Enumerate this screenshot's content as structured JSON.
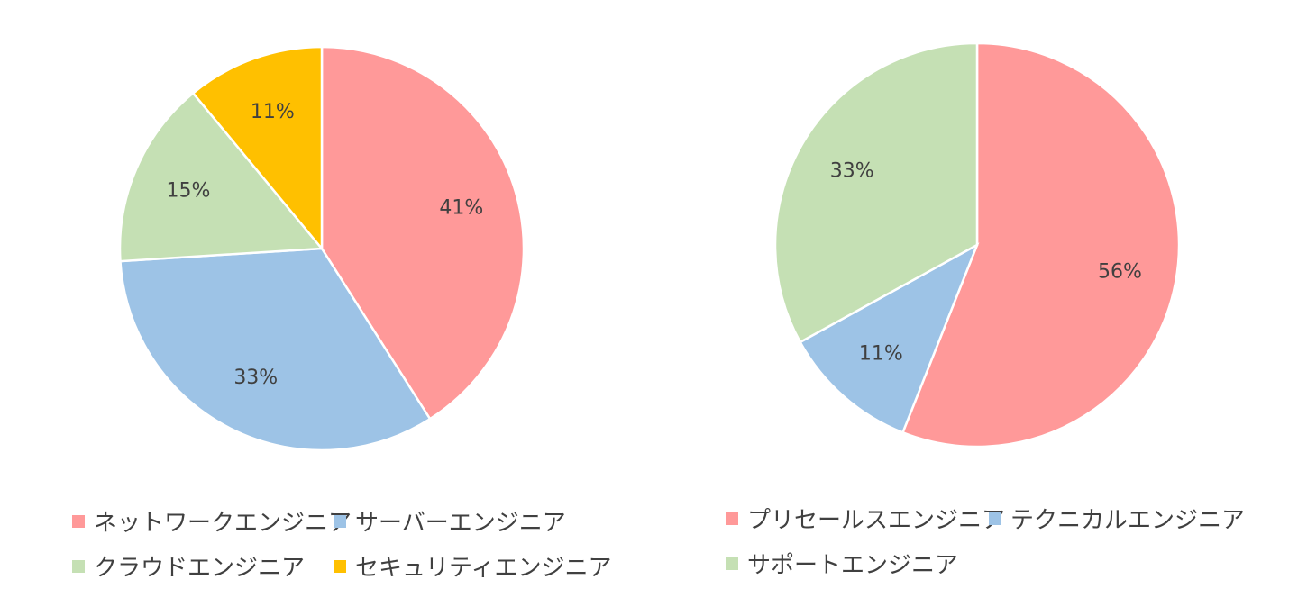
{
  "chart_data": [
    {
      "type": "pie",
      "title": "",
      "colors": [
        "#FF9999",
        "#9DC3E6",
        "#C5E0B4",
        "#FFC000"
      ],
      "categories": [
        "ネットワークエンジニア",
        "サーバーエンジニア",
        "クラウドエンジニア",
        "セキュリティエンジニア"
      ],
      "values": [
        41,
        33,
        15,
        11
      ],
      "labels": [
        "41%",
        "33%",
        "15%",
        "11%"
      ],
      "start_angle": "12 o'clock",
      "direction": "clockwise",
      "legend_position": "bottom"
    },
    {
      "type": "pie",
      "title": "",
      "colors": [
        "#FF9999",
        "#9DC3E6",
        "#C5E0B4"
      ],
      "categories": [
        "プリセールスエンジニア",
        "テクニカルエンジニア",
        "サポートエンジニア"
      ],
      "values": [
        56,
        11,
        33
      ],
      "labels": [
        "56%",
        "11%",
        "33%"
      ],
      "start_angle": "12 o'clock",
      "direction": "clockwise",
      "legend_position": "bottom"
    }
  ]
}
